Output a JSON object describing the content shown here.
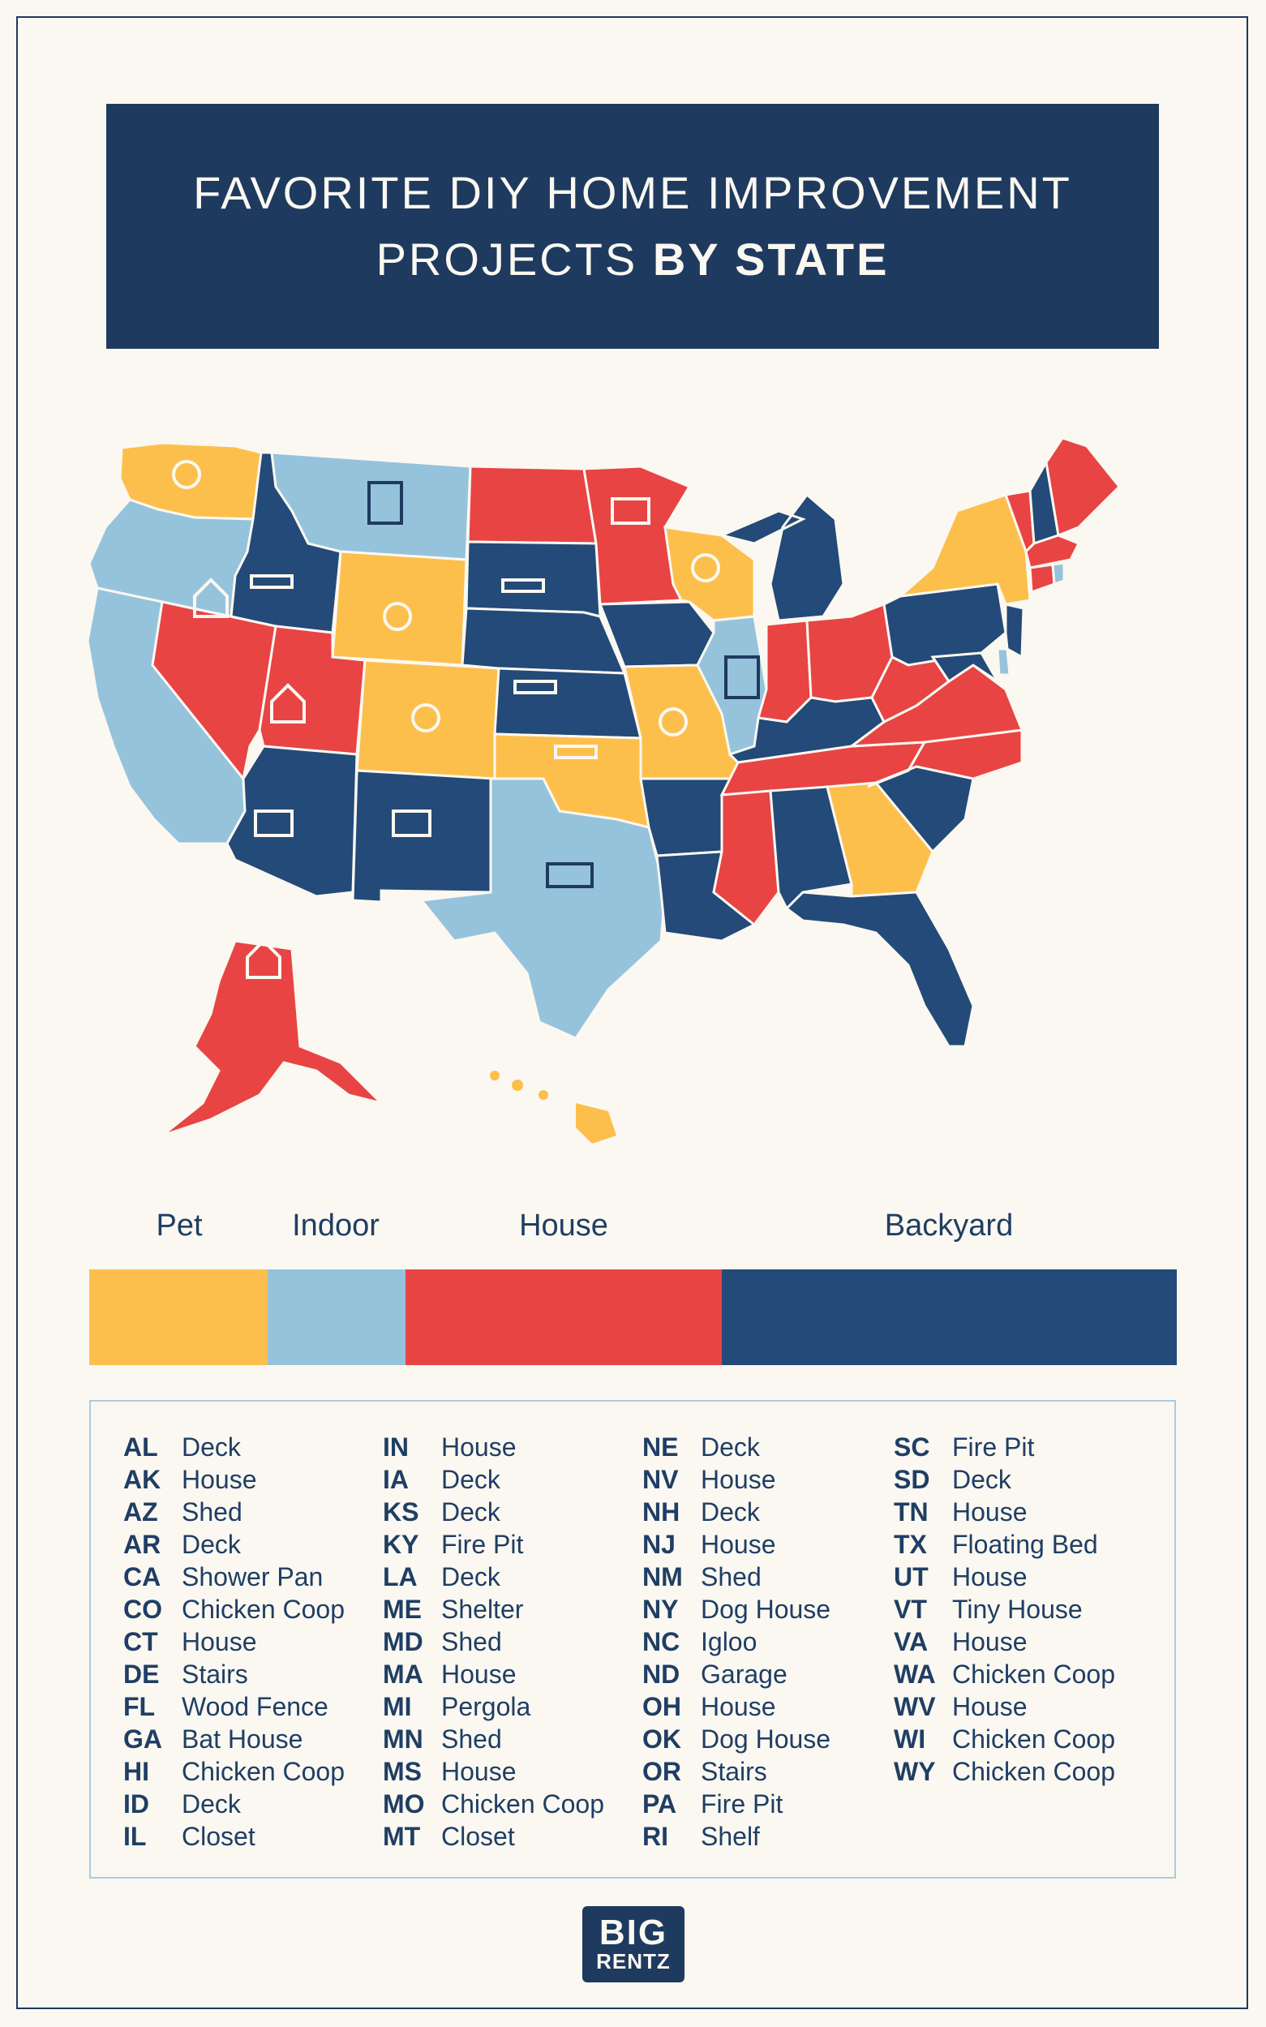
{
  "title": {
    "line1": "FAVORITE DIY HOME IMPROVEMENT",
    "line2_regular": "PROJECTS ",
    "line2_bold": "BY STATE"
  },
  "colors": {
    "pet": "#fdbf4c",
    "indoor": "#96c3dc",
    "house": "#e84444",
    "backyard": "#234a78",
    "background": "#fbf8f1",
    "navy": "#1e3a5f"
  },
  "legend": {
    "items": [
      {
        "label": "Pet",
        "share": 0.164
      },
      {
        "label": "Indoor",
        "share": 0.127
      },
      {
        "label": "House",
        "share": 0.291
      },
      {
        "label": "Backyard",
        "share": 0.418
      }
    ]
  },
  "states": [
    [
      {
        "abbr": "AL",
        "project": "Deck"
      },
      {
        "abbr": "AK",
        "project": "House"
      },
      {
        "abbr": "AZ",
        "project": "Shed"
      },
      {
        "abbr": "AR",
        "project": "Deck"
      },
      {
        "abbr": "CA",
        "project": "Shower Pan"
      },
      {
        "abbr": "CO",
        "project": "Chicken Coop"
      },
      {
        "abbr": "CT",
        "project": "House"
      },
      {
        "abbr": "DE",
        "project": "Stairs"
      },
      {
        "abbr": "FL",
        "project": "Wood Fence"
      },
      {
        "abbr": "GA",
        "project": "Bat House"
      },
      {
        "abbr": "HI",
        "project": "Chicken Coop"
      },
      {
        "abbr": "ID",
        "project": "Deck"
      },
      {
        "abbr": "IL",
        "project": "Closet"
      }
    ],
    [
      {
        "abbr": "IN",
        "project": "House"
      },
      {
        "abbr": "IA",
        "project": "Deck"
      },
      {
        "abbr": "KS",
        "project": "Deck"
      },
      {
        "abbr": "KY",
        "project": "Fire Pit"
      },
      {
        "abbr": "LA",
        "project": "Deck"
      },
      {
        "abbr": "ME",
        "project": "Shelter"
      },
      {
        "abbr": "MD",
        "project": "Shed"
      },
      {
        "abbr": "MA",
        "project": "House"
      },
      {
        "abbr": "MI",
        "project": "Pergola"
      },
      {
        "abbr": "MN",
        "project": "Shed"
      },
      {
        "abbr": "MS",
        "project": "House"
      },
      {
        "abbr": "MO",
        "project": "Chicken Coop"
      },
      {
        "abbr": "MT",
        "project": "Closet"
      }
    ],
    [
      {
        "abbr": "NE",
        "project": "Deck"
      },
      {
        "abbr": "NV",
        "project": "House"
      },
      {
        "abbr": "NH",
        "project": "Deck"
      },
      {
        "abbr": "NJ",
        "project": "House"
      },
      {
        "abbr": "NM",
        "project": "Shed"
      },
      {
        "abbr": "NY",
        "project": "Dog House"
      },
      {
        "abbr": "NC",
        "project": "Igloo"
      },
      {
        "abbr": "ND",
        "project": "Garage"
      },
      {
        "abbr": "OH",
        "project": "House"
      },
      {
        "abbr": "OK",
        "project": "Dog House"
      },
      {
        "abbr": "OR",
        "project": "Stairs"
      },
      {
        "abbr": "PA",
        "project": "Fire Pit"
      },
      {
        "abbr": "RI",
        "project": "Shelf"
      }
    ],
    [
      {
        "abbr": "SC",
        "project": "Fire Pit"
      },
      {
        "abbr": "SD",
        "project": "Deck"
      },
      {
        "abbr": "TN",
        "project": "House"
      },
      {
        "abbr": "TX",
        "project": "Floating Bed"
      },
      {
        "abbr": "UT",
        "project": "House"
      },
      {
        "abbr": "VT",
        "project": "Tiny House"
      },
      {
        "abbr": "VA",
        "project": "House"
      },
      {
        "abbr": "WA",
        "project": "Chicken Coop"
      },
      {
        "abbr": "WV",
        "project": "House"
      },
      {
        "abbr": "WI",
        "project": "Chicken Coop"
      },
      {
        "abbr": "WY",
        "project": "Chicken Coop"
      }
    ]
  ],
  "logo": {
    "line1": "BIG",
    "line2": "RENTZ"
  }
}
